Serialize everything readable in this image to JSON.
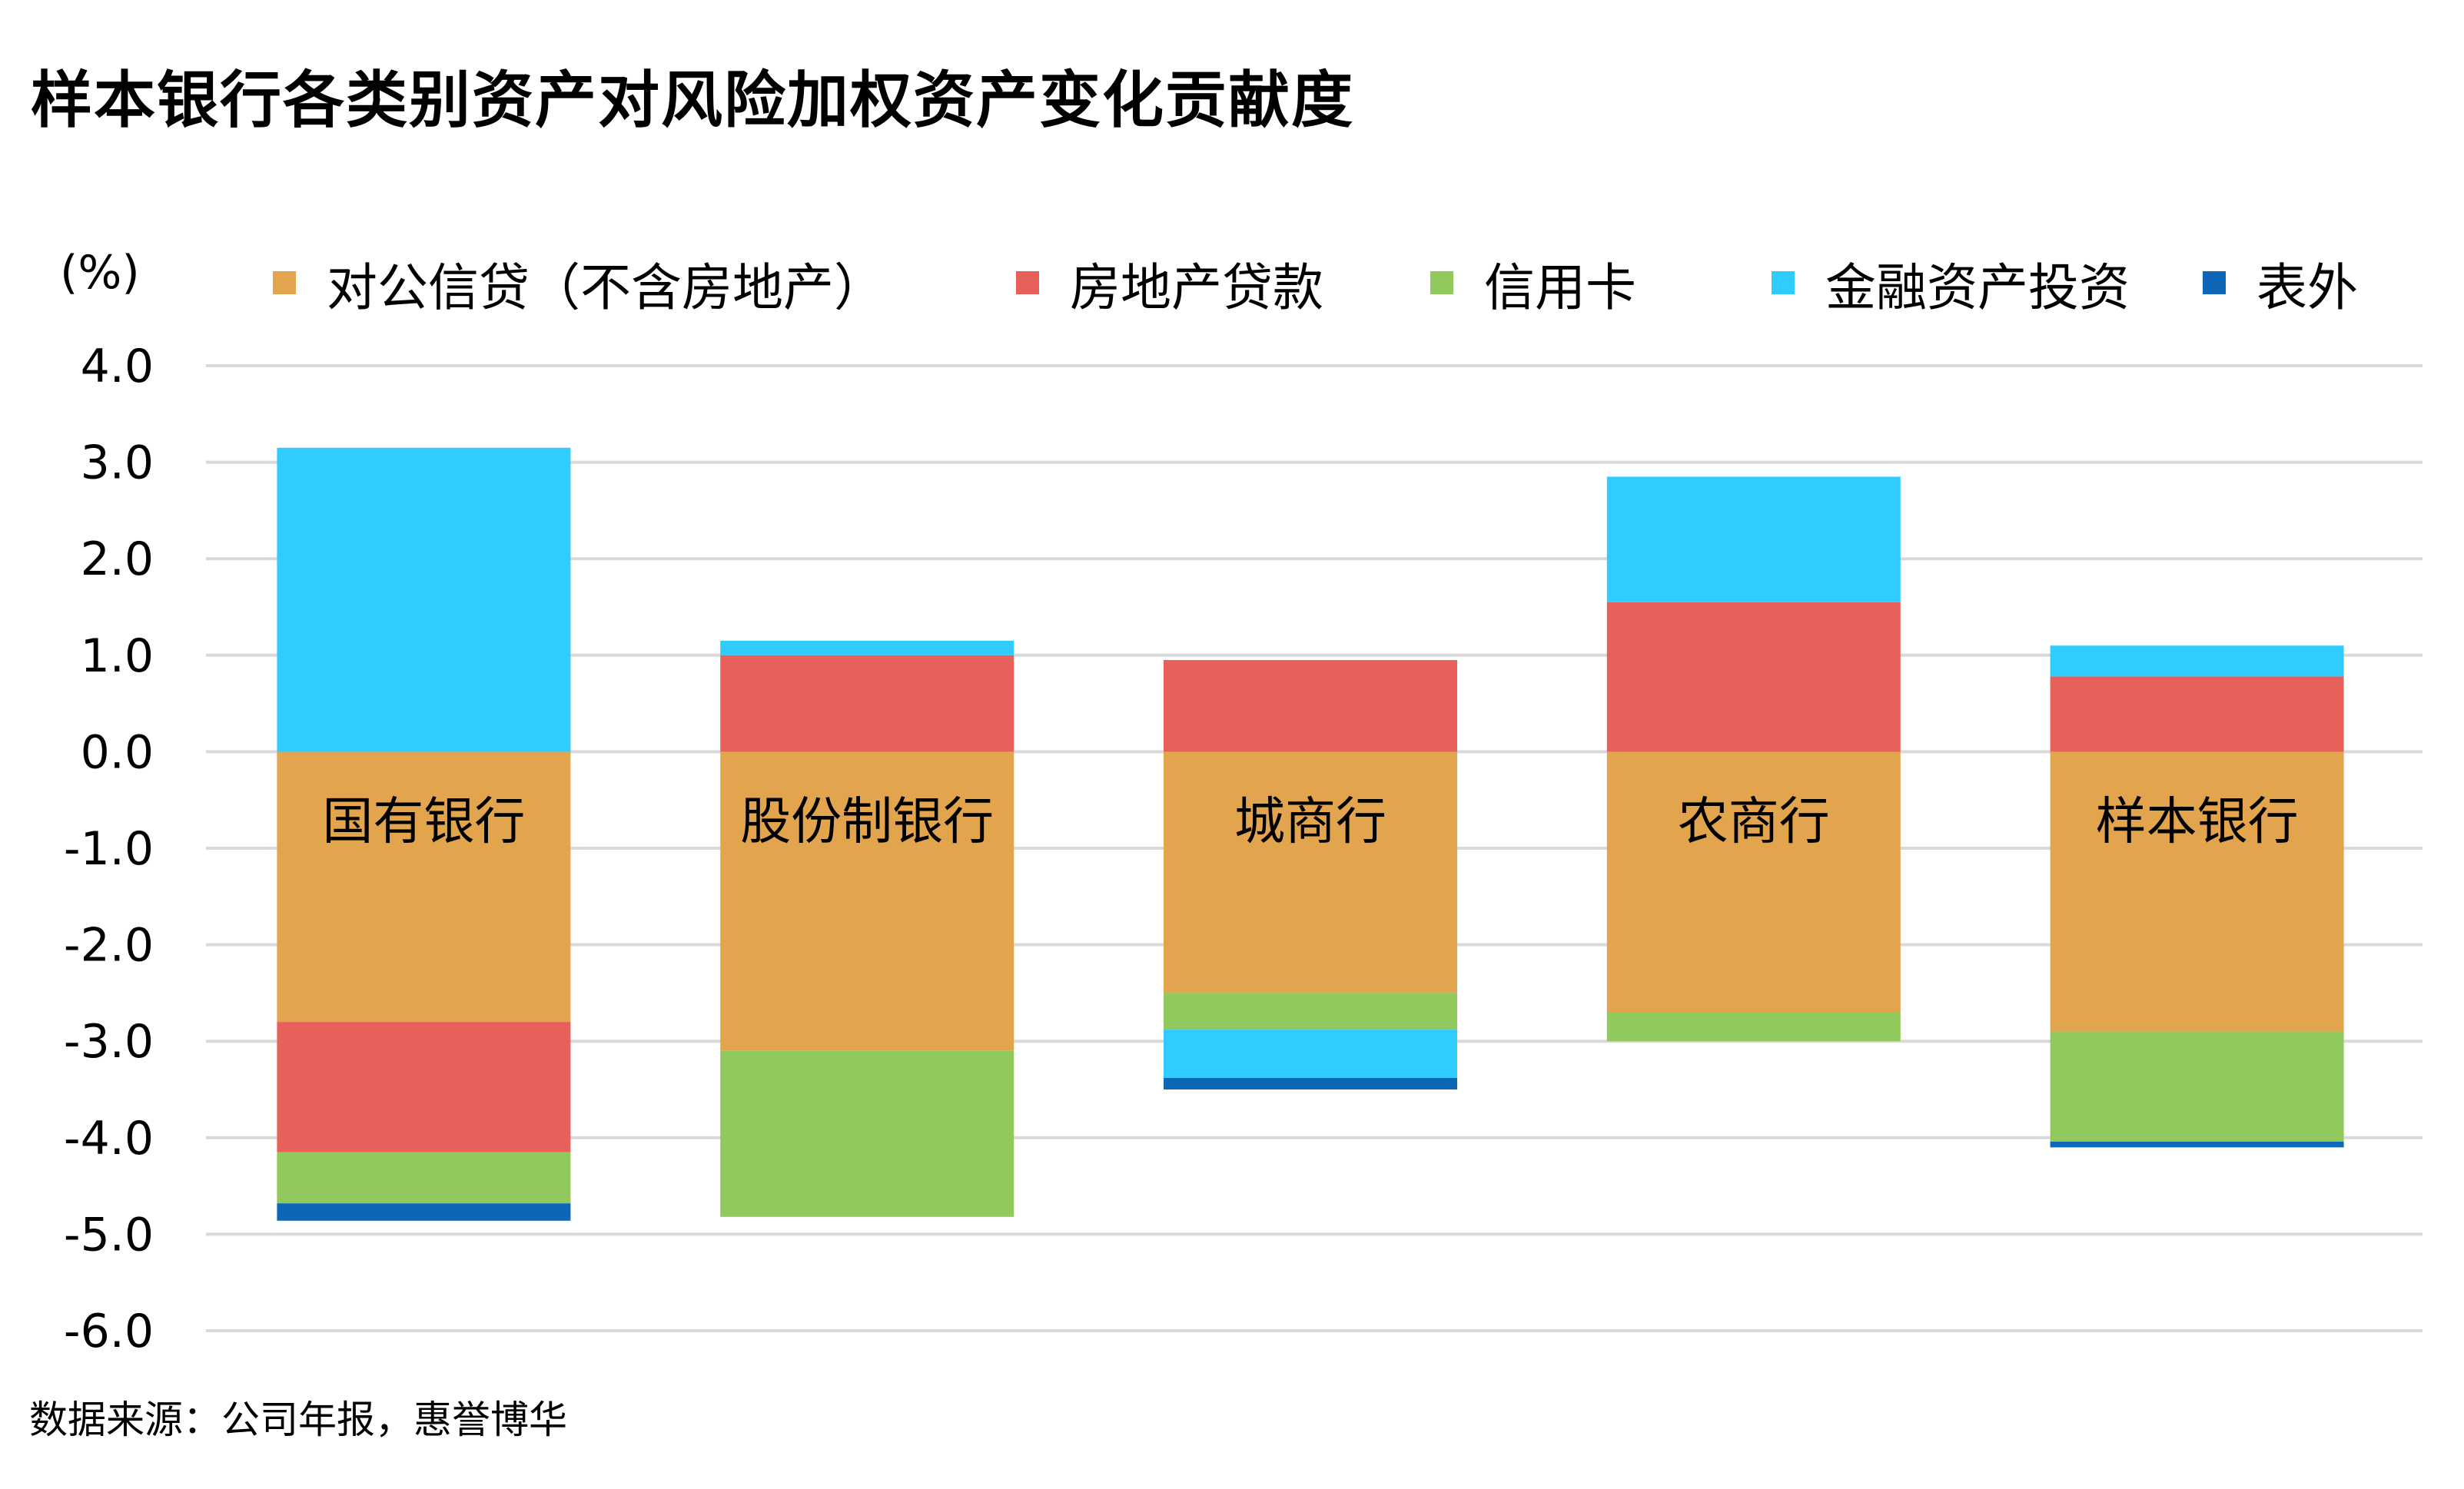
{
  "title": "样本银行各类别资产对风险加权资产变化贡献度",
  "source": "数据来源：公司年报，惠誉博华",
  "chart_data": {
    "type": "bar",
    "stacked": true,
    "unit_label": "(%)",
    "ylim": [
      -6.0,
      4.0
    ],
    "yticks": [
      4.0,
      3.0,
      2.0,
      1.0,
      0.0,
      -1.0,
      -2.0,
      -3.0,
      -4.0,
      -5.0,
      -6.0
    ],
    "ytick_labels": [
      "4.0",
      "3.0",
      "2.0",
      "1.0",
      "0.0",
      "-1.0",
      "-2.0",
      "-3.0",
      "-4.0",
      "-5.0",
      "-6.0"
    ],
    "grid": true,
    "legend_position": "top",
    "categories": [
      "国有银行",
      "股份制银行",
      "城商行",
      "农商行",
      "样本银行"
    ],
    "series": [
      {
        "name": "对公信贷（不含房地产）",
        "color": "#E3A44E",
        "values": [
          -2.8,
          -3.1,
          -2.5,
          -2.7,
          -2.9
        ]
      },
      {
        "name": "房地产贷款",
        "color": "#E8605A",
        "values": [
          -1.35,
          1.0,
          0.95,
          1.55,
          0.78
        ]
      },
      {
        "name": "信用卡",
        "color": "#92C95C",
        "values": [
          -0.53,
          -1.72,
          -0.38,
          -0.3,
          -1.14
        ]
      },
      {
        "name": "金融资产投资",
        "color": "#30CCFF",
        "values": [
          3.15,
          0.15,
          -0.5,
          1.3,
          0.32
        ]
      },
      {
        "name": "表外",
        "color": "#0E67B6",
        "values": [
          -0.18,
          0.0,
          -0.12,
          0.0,
          -0.06
        ]
      }
    ]
  }
}
